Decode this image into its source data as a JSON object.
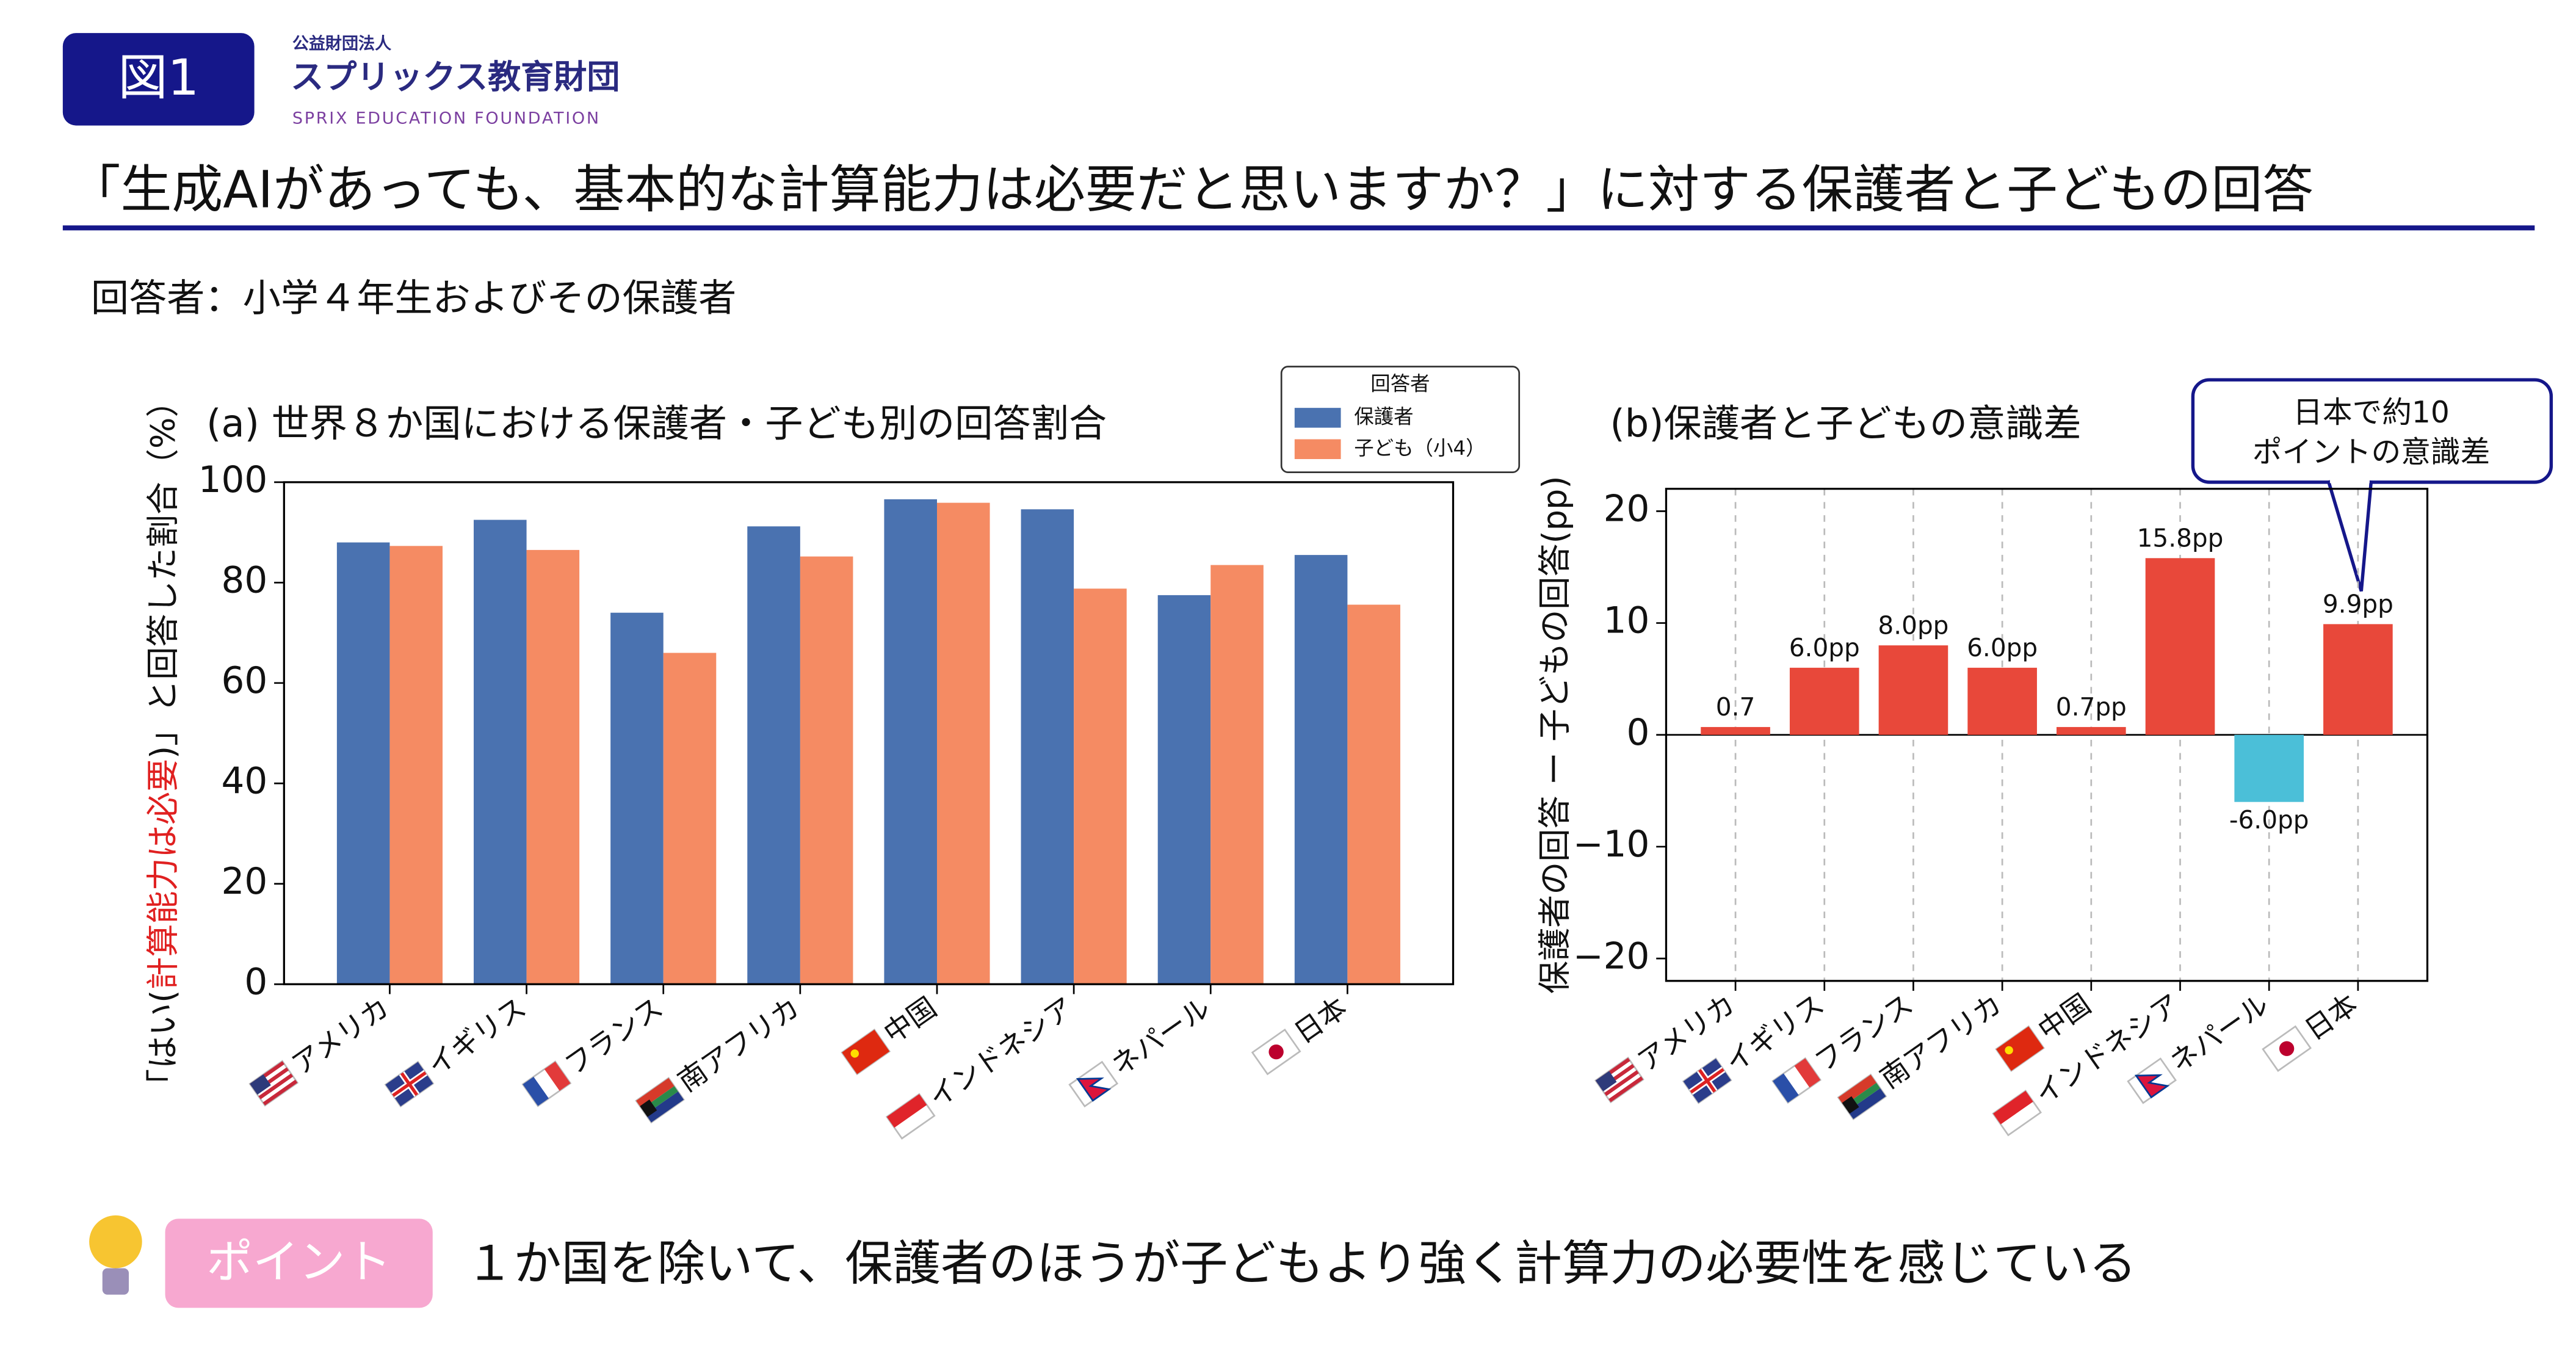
{
  "header": {
    "badge": "図1",
    "org_small": "公益財団法人",
    "org_name": "スプリックス教育財団",
    "org_en": "SPRIX EDUCATION FOUNDATION",
    "title": "「生成AIがあっても、基本的な計算能力は必要だと思いますか？」に対する保護者と子どもの回答",
    "respondents": "回答者：小学４年生およびその保護者"
  },
  "chart_data": [
    {
      "type": "grouped-bar",
      "title": "(a) 世界８か国における保護者・子ども別の回答割合",
      "y_label_parts": [
        "「はい(",
        "計算能力は必要",
        ")」と回答した割合（%）"
      ],
      "categories": [
        "アメリカ",
        "イギリス",
        "フランス",
        "南アフリカ",
        "中国",
        "インドネシア",
        "ネパール",
        "日本"
      ],
      "legend_title": "回答者",
      "series": [
        {
          "name": "保護者",
          "color": "#4a72b0",
          "values": [
            88.0,
            92.5,
            74.0,
            91.2,
            96.6,
            94.6,
            77.5,
            85.5
          ]
        },
        {
          "name": "子ども（小4）",
          "color": "#f58b63",
          "values": [
            87.3,
            86.5,
            66.0,
            85.2,
            95.9,
            78.8,
            83.5,
            75.6
          ]
        }
      ],
      "ylim": [
        0,
        100
      ],
      "yticks": [
        0,
        20,
        40,
        60,
        80,
        100
      ]
    },
    {
      "type": "bar",
      "title": "(b)保護者と子どもの意識差",
      "y_label": "保護者の回答 ー 子どもの回答(pp)",
      "categories": [
        "アメリカ",
        "イギリス",
        "フランス",
        "南アフリカ",
        "中国",
        "インドネシア",
        "ネパール",
        "日本"
      ],
      "values": [
        0.7,
        6.0,
        8.0,
        6.0,
        0.7,
        15.8,
        -6.0,
        9.9
      ],
      "value_labels": [
        "0.7",
        "6.0pp",
        "8.0pp",
        "6.0pp",
        "0.7pp",
        "15.8pp",
        "-6.0pp",
        "9.9pp"
      ],
      "colors": [
        "#e8483a",
        "#e8483a",
        "#e8483a",
        "#e8483a",
        "#e8483a",
        "#e8483a",
        "#4bbfd8",
        "#e8483a"
      ],
      "ylim": [
        -22,
        22
      ],
      "yticks": [
        {
          "value": -20,
          "label": "−20"
        },
        {
          "value": -10,
          "label": "−10"
        },
        0,
        10,
        20
      ],
      "annotation": [
        "日本で約10",
        "ポイントの意識差"
      ]
    }
  ],
  "footer": {
    "point_label": "ポイント",
    "point_text": "１か国を除いて、保護者のほうが子どもより強く計算力の必要性を感じている"
  }
}
